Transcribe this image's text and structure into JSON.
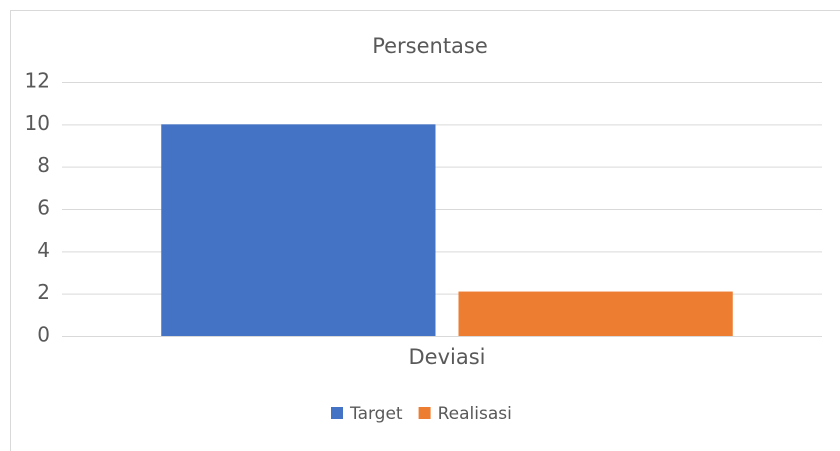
{
  "chart_data": {
    "type": "bar",
    "title": "Persentase",
    "categories": [
      "Deviasi"
    ],
    "series": [
      {
        "name": "Target",
        "color": "#4472c4",
        "values": [
          10
        ]
      },
      {
        "name": "Realisasi",
        "color": "#ed7d31",
        "values": [
          2.1
        ]
      }
    ],
    "ylim": [
      0,
      12
    ],
    "yticks": [
      0,
      2,
      4,
      6,
      8,
      10,
      12
    ],
    "grid": true,
    "legend": "bottom"
  }
}
